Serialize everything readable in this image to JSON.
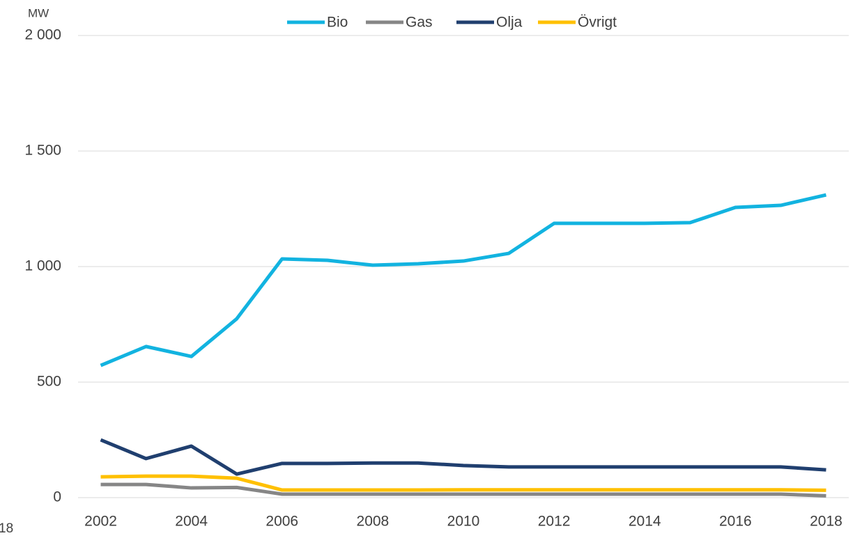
{
  "chart_data": {
    "type": "line",
    "y_unit": "MW",
    "stray_text": "18",
    "x": [
      2002,
      2003,
      2004,
      2005,
      2006,
      2007,
      2008,
      2009,
      2010,
      2011,
      2012,
      2013,
      2014,
      2015,
      2016,
      2017,
      2018
    ],
    "xlim": [
      2001.5,
      2018.5
    ],
    "xticks": [
      2002,
      2004,
      2006,
      2008,
      2010,
      2012,
      2014,
      2016,
      2018
    ],
    "ylim": [
      0,
      2000
    ],
    "yticks": [
      0,
      500,
      {
        "value": 1000,
        "label": "1 000"
      },
      {
        "value": 1500,
        "label": "1 500"
      },
      {
        "value": 2000,
        "label": "2 000"
      }
    ],
    "grid": true,
    "legend": "top",
    "series": [
      {
        "name": "Bio",
        "color": "#12b3e0",
        "values": [
          572,
          654,
          611,
          774,
          1033,
          1027,
          1006,
          1012,
          1024,
          1057,
          1187,
          1187,
          1187,
          1190,
          1256,
          1265,
          1310
        ]
      },
      {
        "name": "Gas",
        "color": "#868686",
        "values": [
          57,
          57,
          42,
          44,
          15,
          15,
          15,
          15,
          15,
          15,
          15,
          15,
          15,
          15,
          15,
          15,
          8
        ]
      },
      {
        "name": "Olja",
        "color": "#203f6f",
        "values": [
          250,
          169,
          223,
          102,
          148,
          148,
          150,
          150,
          139,
          133,
          133,
          133,
          133,
          133,
          133,
          133,
          120
        ]
      },
      {
        "name": "Övrigt",
        "color": "#ffc000",
        "values": [
          90,
          93,
          93,
          84,
          33,
          33,
          33,
          33,
          34,
          34,
          34,
          34,
          34,
          34,
          34,
          34,
          32
        ]
      }
    ]
  }
}
